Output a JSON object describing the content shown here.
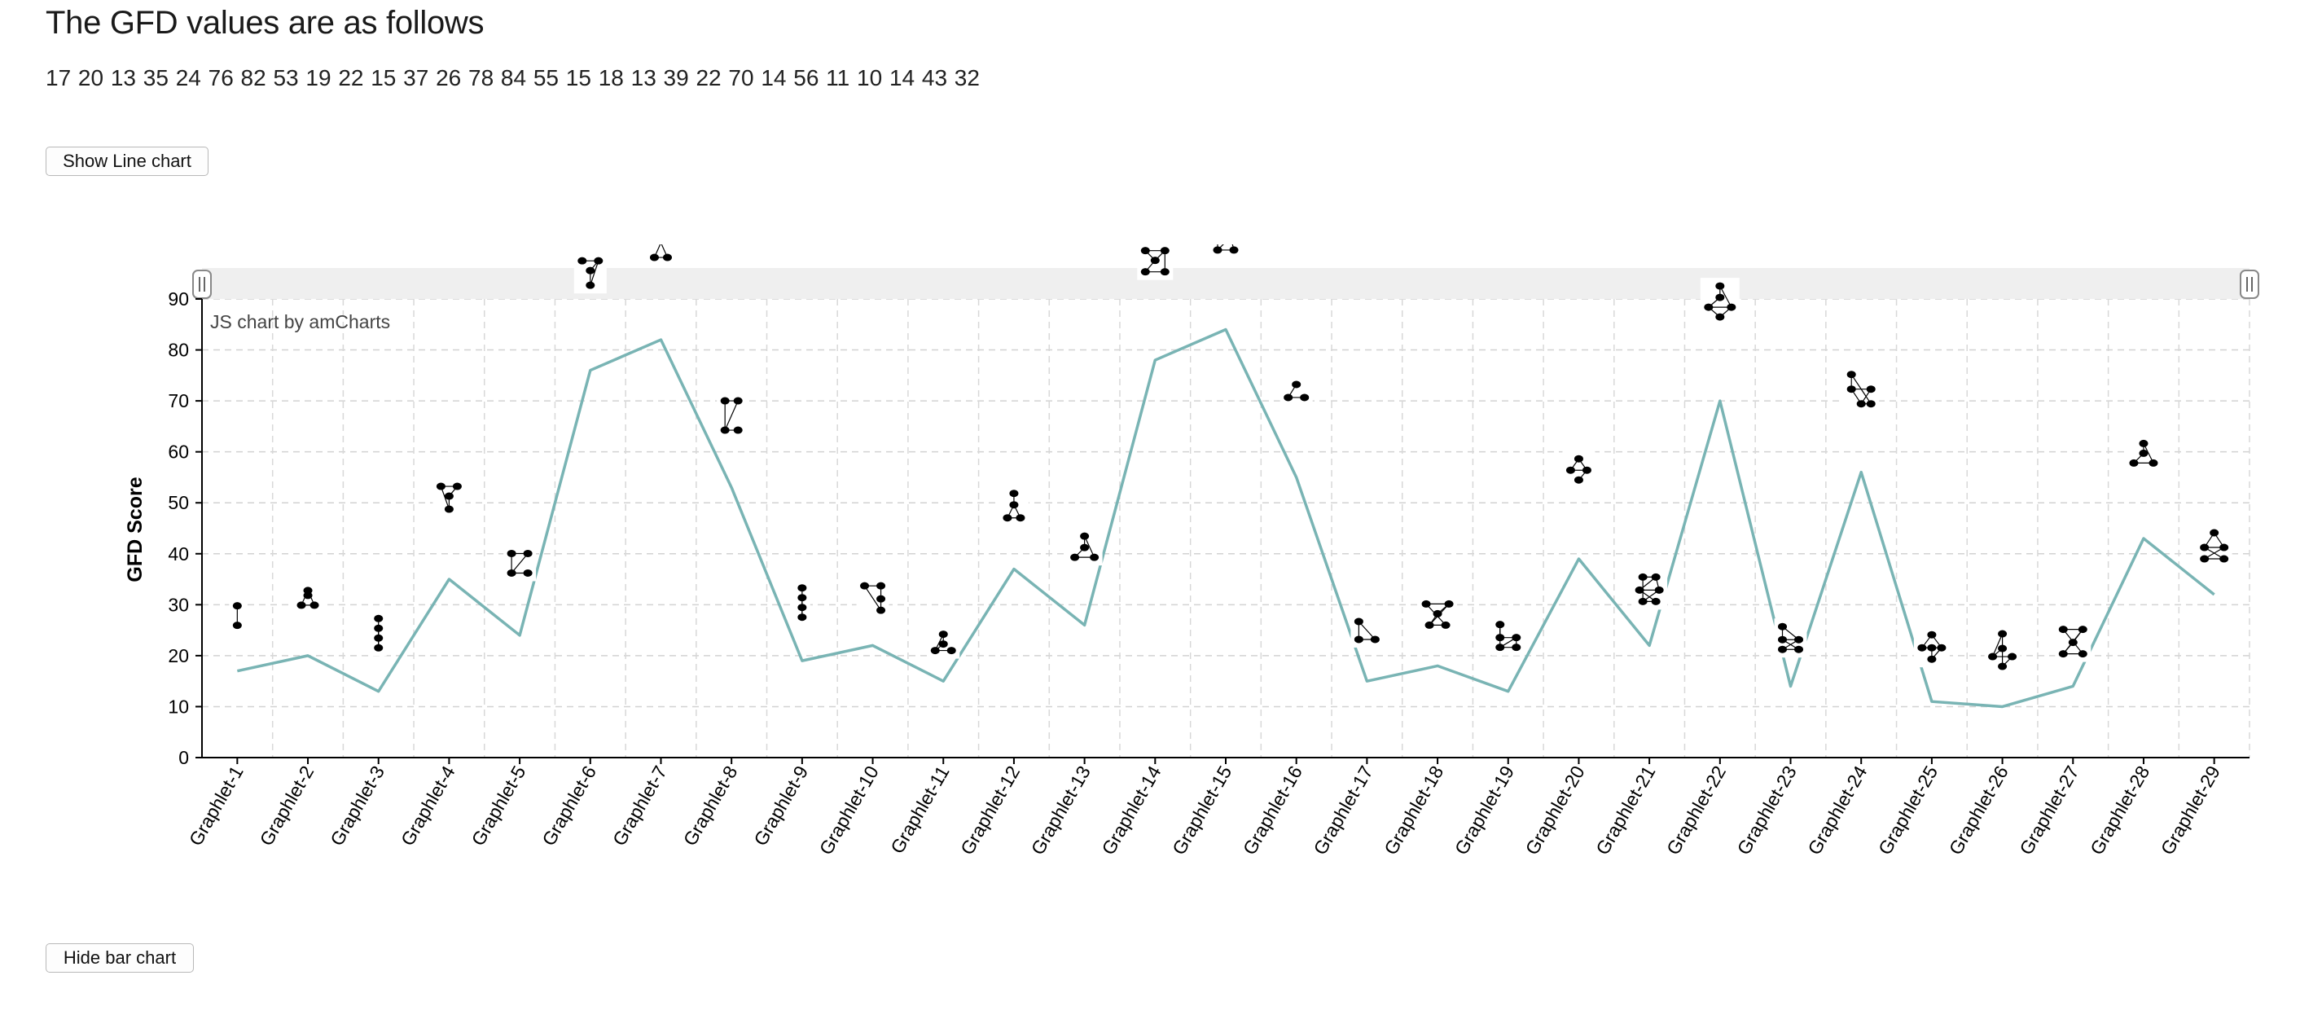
{
  "page": {
    "heading": "The GFD values are as follows",
    "values_text": "17 20 13 35 24 76 82 53 19 22 15 37 26 78 84 55 15 18 13 39 22 70 14 56 11 10 14 43 32",
    "show_line_button": "Show Line chart",
    "hide_bar_button": "Hide bar chart"
  },
  "chart_data": {
    "type": "line",
    "credit": "JS chart by amCharts",
    "ylabel": "GFD Score",
    "xlabel": "",
    "ylim": [
      0,
      90
    ],
    "yticks": [
      0,
      10,
      20,
      30,
      40,
      50,
      60,
      70,
      80,
      90
    ],
    "grid": true,
    "scrollbar": true,
    "categories": [
      "Graphlet-1",
      "Graphlet-2",
      "Graphlet-3",
      "Graphlet-4",
      "Graphlet-5",
      "Graphlet-6",
      "Graphlet-7",
      "Graphlet-8",
      "Graphlet-9",
      "Graphlet-10",
      "Graphlet-11",
      "Graphlet-12",
      "Graphlet-13",
      "Graphlet-14",
      "Graphlet-15",
      "Graphlet-16",
      "Graphlet-17",
      "Graphlet-18",
      "Graphlet-19",
      "Graphlet-20",
      "Graphlet-21",
      "Graphlet-22",
      "Graphlet-23",
      "Graphlet-24",
      "Graphlet-25",
      "Graphlet-26",
      "Graphlet-27",
      "Graphlet-28",
      "Graphlet-29"
    ],
    "series": [
      {
        "values": [
          17,
          20,
          13,
          35,
          24,
          76,
          82,
          53,
          19,
          22,
          15,
          37,
          26,
          78,
          84,
          55,
          15,
          18,
          13,
          39,
          22,
          70,
          14,
          56,
          11,
          10,
          14,
          43,
          32
        ]
      }
    ],
    "line_color": "#79b4b4",
    "marker": "graphlet-diagram-icon"
  }
}
